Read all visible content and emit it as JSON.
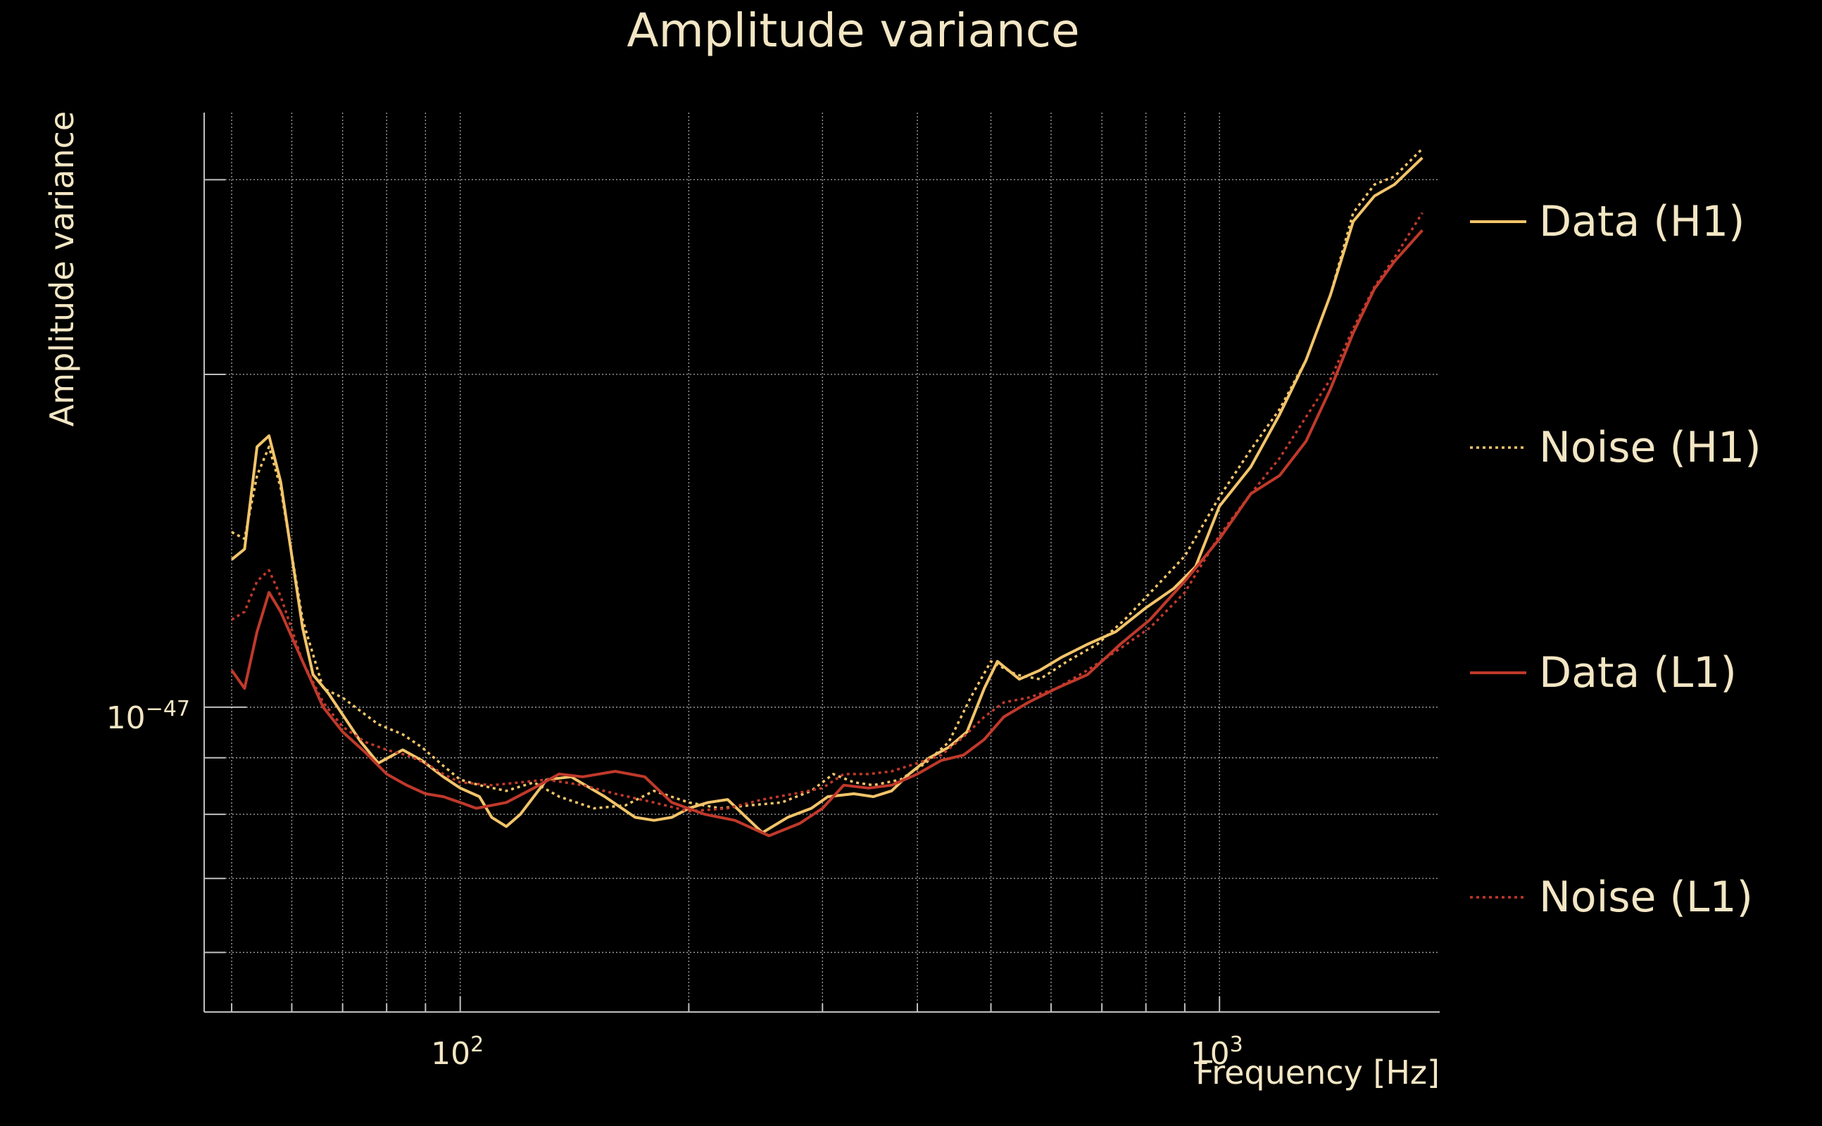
{
  "chart_data": {
    "type": "line",
    "title": "Amplitude variance",
    "xlabel": "Frequency [Hz]",
    "ylabel": "Amplitude variance",
    "xscale": "log",
    "yscale": "log",
    "xlim": [
      46,
      1950
    ],
    "ylim": [
      5.3e-48,
      3.45e-47
    ],
    "x_tick_labels": [
      {
        "value": 100,
        "base": "10",
        "exp": "2"
      },
      {
        "value": 1000,
        "base": "10",
        "exp": "3"
      }
    ],
    "y_tick_labels": [
      {
        "value": 1e-47,
        "base": "10",
        "exp": "−47"
      }
    ],
    "grid": true,
    "legend_position": "right",
    "colors": {
      "background": "#000000",
      "text": "#f3e6c4",
      "axis": "#bfbfbf",
      "grid": "#9a9a9a",
      "h1": "#f2c46a",
      "l1": "#c0392b"
    },
    "series": [
      {
        "name": "Data (H1)",
        "color": "#f2c46a",
        "style": "solid",
        "points": [
          [
            50,
            1.36e-47
          ],
          [
            52,
            1.39e-47
          ],
          [
            54,
            1.72e-47
          ],
          [
            56,
            1.76e-47
          ],
          [
            58,
            1.6e-47
          ],
          [
            62,
            1.18e-47
          ],
          [
            64,
            1.07e-47
          ],
          [
            67,
            1.03e-47
          ],
          [
            74,
            9.3e-48
          ],
          [
            78,
            8.9e-48
          ],
          [
            84,
            9.15e-48
          ],
          [
            89,
            8.95e-48
          ],
          [
            95,
            8.65e-48
          ],
          [
            100,
            8.45e-48
          ],
          [
            106,
            8.3e-48
          ],
          [
            110,
            7.95e-48
          ],
          [
            115,
            7.8e-48
          ],
          [
            120,
            8e-48
          ],
          [
            130,
            8.6e-48
          ],
          [
            140,
            8.65e-48
          ],
          [
            155,
            8.3e-48
          ],
          [
            170,
            7.95e-48
          ],
          [
            180,
            7.9e-48
          ],
          [
            190,
            7.95e-48
          ],
          [
            200,
            8.1e-48
          ],
          [
            212,
            8.2e-48
          ],
          [
            225,
            8.25e-48
          ],
          [
            250,
            7.7e-48
          ],
          [
            270,
            7.95e-48
          ],
          [
            290,
            8.1e-48
          ],
          [
            305,
            8.3e-48
          ],
          [
            330,
            8.35e-48
          ],
          [
            350,
            8.3e-48
          ],
          [
            370,
            8.4e-48
          ],
          [
            390,
            8.7e-48
          ],
          [
            415,
            9e-48
          ],
          [
            440,
            9.2e-48
          ],
          [
            465,
            9.5e-48
          ],
          [
            490,
            1.04e-47
          ],
          [
            510,
            1.1e-47
          ],
          [
            545,
            1.06e-47
          ],
          [
            580,
            1.08e-47
          ],
          [
            620,
            1.11e-47
          ],
          [
            670,
            1.14e-47
          ],
          [
            730,
            1.17e-47
          ],
          [
            800,
            1.23e-47
          ],
          [
            870,
            1.28e-47
          ],
          [
            930,
            1.34e-47
          ],
          [
            1000,
            1.52e-47
          ],
          [
            1100,
            1.65e-47
          ],
          [
            1200,
            1.84e-47
          ],
          [
            1300,
            2.06e-47
          ],
          [
            1400,
            2.36e-47
          ],
          [
            1500,
            2.75e-47
          ],
          [
            1600,
            2.9e-47
          ],
          [
            1700,
            2.97e-47
          ],
          [
            1850,
            3.14e-47
          ]
        ]
      },
      {
        "name": "Noise (H1)",
        "color": "#f2c46a",
        "style": "dotted",
        "points": [
          [
            50,
            1.44e-47
          ],
          [
            52,
            1.42e-47
          ],
          [
            54,
            1.62e-47
          ],
          [
            56,
            1.72e-47
          ],
          [
            58,
            1.58e-47
          ],
          [
            62,
            1.2e-47
          ],
          [
            66,
            1.04e-47
          ],
          [
            70,
            1.02e-47
          ],
          [
            78,
            9.65e-48
          ],
          [
            84,
            9.45e-48
          ],
          [
            89,
            9.2e-48
          ],
          [
            95,
            8.85e-48
          ],
          [
            100,
            8.6e-48
          ],
          [
            106,
            8.5e-48
          ],
          [
            115,
            8.4e-48
          ],
          [
            125,
            8.55e-48
          ],
          [
            135,
            8.3e-48
          ],
          [
            150,
            8.1e-48
          ],
          [
            165,
            8.15e-48
          ],
          [
            180,
            8.4e-48
          ],
          [
            200,
            8.2e-48
          ],
          [
            220,
            8.1e-48
          ],
          [
            240,
            8.15e-48
          ],
          [
            265,
            8.2e-48
          ],
          [
            290,
            8.4e-48
          ],
          [
            310,
            8.7e-48
          ],
          [
            330,
            8.55e-48
          ],
          [
            350,
            8.5e-48
          ],
          [
            380,
            8.6e-48
          ],
          [
            410,
            8.9e-48
          ],
          [
            440,
            9.3e-48
          ],
          [
            470,
            1.02e-47
          ],
          [
            500,
            1.1e-47
          ],
          [
            540,
            1.07e-47
          ],
          [
            580,
            1.06e-47
          ],
          [
            630,
            1.1e-47
          ],
          [
            690,
            1.14e-47
          ],
          [
            750,
            1.2e-47
          ],
          [
            820,
            1.28e-47
          ],
          [
            900,
            1.37e-47
          ],
          [
            1000,
            1.55e-47
          ],
          [
            1100,
            1.71e-47
          ],
          [
            1200,
            1.86e-47
          ],
          [
            1300,
            2.06e-47
          ],
          [
            1400,
            2.36e-47
          ],
          [
            1500,
            2.8e-47
          ],
          [
            1600,
            2.97e-47
          ],
          [
            1700,
            3.02e-47
          ],
          [
            1850,
            3.2e-47
          ]
        ]
      },
      {
        "name": "Data (L1)",
        "color": "#c0392b",
        "style": "solid",
        "points": [
          [
            50,
            1.08e-47
          ],
          [
            52,
            1.04e-47
          ],
          [
            54,
            1.17e-47
          ],
          [
            56,
            1.27e-47
          ],
          [
            58,
            1.22e-47
          ],
          [
            62,
            1.1e-47
          ],
          [
            66,
            1e-47
          ],
          [
            70,
            9.5e-48
          ],
          [
            75,
            9.1e-48
          ],
          [
            80,
            8.7e-48
          ],
          [
            85,
            8.5e-48
          ],
          [
            90,
            8.35e-48
          ],
          [
            95,
            8.3e-48
          ],
          [
            100,
            8.2e-48
          ],
          [
            105,
            8.1e-48
          ],
          [
            115,
            8.2e-48
          ],
          [
            125,
            8.45e-48
          ],
          [
            135,
            8.7e-48
          ],
          [
            145,
            8.65e-48
          ],
          [
            160,
            8.75e-48
          ],
          [
            175,
            8.65e-48
          ],
          [
            190,
            8.2e-48
          ],
          [
            210,
            8e-48
          ],
          [
            230,
            7.9e-48
          ],
          [
            255,
            7.65e-48
          ],
          [
            280,
            7.85e-48
          ],
          [
            300,
            8.1e-48
          ],
          [
            320,
            8.5e-48
          ],
          [
            345,
            8.45e-48
          ],
          [
            370,
            8.5e-48
          ],
          [
            400,
            8.7e-48
          ],
          [
            430,
            8.95e-48
          ],
          [
            460,
            9.05e-48
          ],
          [
            490,
            9.35e-48
          ],
          [
            520,
            9.8e-48
          ],
          [
            560,
            1.01e-47
          ],
          [
            610,
            1.04e-47
          ],
          [
            670,
            1.07e-47
          ],
          [
            740,
            1.14e-47
          ],
          [
            810,
            1.2e-47
          ],
          [
            900,
            1.3e-47
          ],
          [
            1000,
            1.42e-47
          ],
          [
            1100,
            1.56e-47
          ],
          [
            1200,
            1.62e-47
          ],
          [
            1300,
            1.74e-47
          ],
          [
            1400,
            1.94e-47
          ],
          [
            1500,
            2.18e-47
          ],
          [
            1600,
            2.39e-47
          ],
          [
            1700,
            2.53e-47
          ],
          [
            1850,
            2.7e-47
          ]
        ]
      },
      {
        "name": "Noise (L1)",
        "color": "#c0392b",
        "style": "dotted",
        "points": [
          [
            50,
            1.2e-47
          ],
          [
            52,
            1.22e-47
          ],
          [
            54,
            1.3e-47
          ],
          [
            56,
            1.33e-47
          ],
          [
            58,
            1.26e-47
          ],
          [
            62,
            1.1e-47
          ],
          [
            66,
            1.01e-47
          ],
          [
            70,
            9.6e-48
          ],
          [
            75,
            9.3e-48
          ],
          [
            80,
            9.15e-48
          ],
          [
            85,
            9.05e-48
          ],
          [
            90,
            8.9e-48
          ],
          [
            95,
            8.7e-48
          ],
          [
            100,
            8.55e-48
          ],
          [
            110,
            8.5e-48
          ],
          [
            120,
            8.55e-48
          ],
          [
            130,
            8.6e-48
          ],
          [
            145,
            8.5e-48
          ],
          [
            160,
            8.35e-48
          ],
          [
            180,
            8.2e-48
          ],
          [
            200,
            8.05e-48
          ],
          [
            225,
            8.1e-48
          ],
          [
            250,
            8.25e-48
          ],
          [
            275,
            8.35e-48
          ],
          [
            300,
            8.45e-48
          ],
          [
            320,
            8.7e-48
          ],
          [
            345,
            8.7e-48
          ],
          [
            370,
            8.75e-48
          ],
          [
            400,
            8.9e-48
          ],
          [
            430,
            9.05e-48
          ],
          [
            460,
            9.4e-48
          ],
          [
            490,
            9.8e-48
          ],
          [
            520,
            1.01e-47
          ],
          [
            560,
            1.02e-47
          ],
          [
            610,
            1.04e-47
          ],
          [
            670,
            1.08e-47
          ],
          [
            740,
            1.13e-47
          ],
          [
            810,
            1.18e-47
          ],
          [
            900,
            1.27e-47
          ],
          [
            1000,
            1.43e-47
          ],
          [
            1100,
            1.56e-47
          ],
          [
            1200,
            1.68e-47
          ],
          [
            1300,
            1.83e-47
          ],
          [
            1400,
            1.98e-47
          ],
          [
            1500,
            2.2e-47
          ],
          [
            1600,
            2.4e-47
          ],
          [
            1700,
            2.55e-47
          ],
          [
            1850,
            2.8e-47
          ]
        ]
      }
    ]
  }
}
